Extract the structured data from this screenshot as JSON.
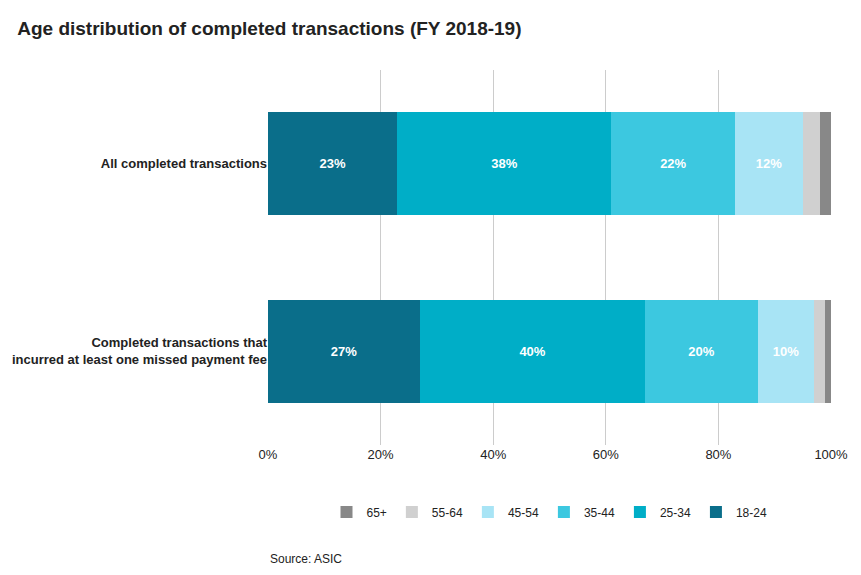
{
  "chart_data": {
    "type": "bar",
    "orientation": "horizontal",
    "stacked": true,
    "title": "Age distribution of completed transactions (FY 2018-19)",
    "source": "Source: ASIC",
    "categories": [
      "All completed transactions",
      "Completed transactions that\nincurred at least one missed payment fee"
    ],
    "series": [
      {
        "name": "18-24",
        "color": "#0a6e8a",
        "values": [
          23,
          27
        ],
        "value_labels": [
          "23%",
          "27%"
        ]
      },
      {
        "name": "25-34",
        "color": "#00aec7",
        "values": [
          38,
          40
        ],
        "value_labels": [
          "38%",
          "40%"
        ]
      },
      {
        "name": "35-44",
        "color": "#3cc8e0",
        "values": [
          22,
          20
        ],
        "value_labels": [
          "22%",
          "20%"
        ]
      },
      {
        "name": "45-54",
        "color": "#a8e4f5",
        "values": [
          12,
          10
        ],
        "value_labels": [
          "12%",
          "10%"
        ]
      },
      {
        "name": "55-64",
        "color": "#d0d0d0",
        "values": [
          3,
          2
        ],
        "value_labels": [
          null,
          null
        ]
      },
      {
        "name": "65+",
        "color": "#888888",
        "values": [
          2,
          1
        ],
        "value_labels": [
          null,
          null
        ]
      }
    ],
    "xlim": [
      0,
      100
    ],
    "xticks": [
      {
        "value": 0,
        "label": "0%"
      },
      {
        "value": 20,
        "label": "20%"
      },
      {
        "value": 40,
        "label": "40%"
      },
      {
        "value": 60,
        "label": "60%"
      },
      {
        "value": 80,
        "label": "80%"
      },
      {
        "value": 100,
        "label": "100%"
      }
    ],
    "grid": true,
    "data_labels": true,
    "legend": "bottom"
  }
}
